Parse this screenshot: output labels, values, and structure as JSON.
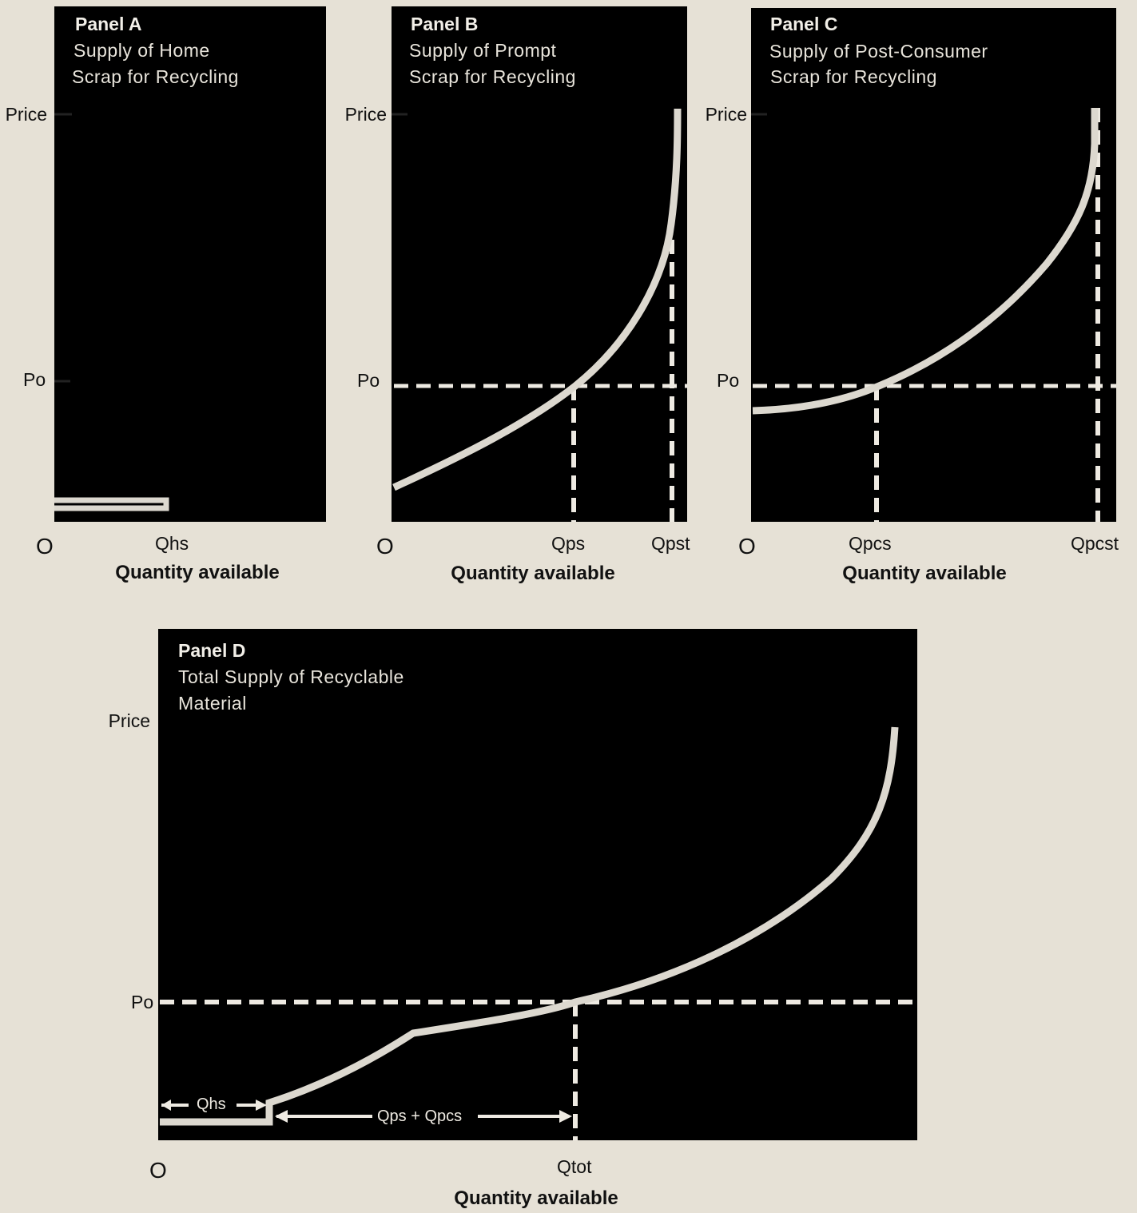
{
  "chart_data": [
    {
      "type": "line",
      "panel": "Panel A",
      "title": "Supply of Home Scrap for Recycling",
      "subtitle_lines": [
        "Supply of Home",
        "Scrap for Recycling"
      ],
      "ylabel": "Price",
      "xlabel": "Quantity available",
      "origin_label": "O",
      "y_ticks": [
        "Price",
        "Po"
      ],
      "x_ticks": [
        "Qhs"
      ],
      "series": [
        {
          "name": "",
          "x": [
            0,
            0.42
          ],
          "y": [
            0.04,
            0.04
          ]
        }
      ]
    },
    {
      "type": "line",
      "panel": "Panel B",
      "title": "Supply of Prompt Scrap for Recycling",
      "subtitle_lines": [
        "Supply of Prompt",
        "Scrap for Recycling"
      ],
      "ylabel": "Price",
      "xlabel": "Quantity available",
      "origin_label": "O",
      "y_ticks": [
        "Price",
        "Po"
      ],
      "x_ticks": [
        "Qps",
        "Qpst"
      ],
      "series": [
        {
          "name": "",
          "x": [
            0,
            0.2,
            0.4,
            0.55,
            0.62,
            0.7,
            0.78,
            0.84,
            0.9,
            0.96,
            0.98,
            0.985
          ],
          "y": [
            0.07,
            0.15,
            0.26,
            0.36,
            0.42,
            0.5,
            0.61,
            0.72,
            0.86,
            1.0,
            1.05,
            1.0
          ]
        }
      ],
      "guides": {
        "p0": 0.27,
        "q_at_p0": 0.61,
        "q_total": 0.96
      }
    },
    {
      "type": "line",
      "panel": "Panel C",
      "title": "Supply of Post-Consumer Scrap for Recycling",
      "subtitle_lines": [
        "Supply of Post-Consumer",
        "Scrap for Recycling"
      ],
      "ylabel": "Price",
      "xlabel": "Quantity available",
      "origin_label": "O",
      "y_ticks": [
        "Price",
        "Po"
      ],
      "x_ticks": [
        "Qpcs",
        "Qpcst"
      ],
      "series": [
        {
          "name": "",
          "x": [
            0,
            0.1,
            0.2,
            0.35,
            0.5,
            0.65,
            0.8,
            0.92,
            0.98,
            0.985
          ],
          "y": [
            0.21,
            0.22,
            0.25,
            0.31,
            0.41,
            0.53,
            0.69,
            0.84,
            0.96,
            1.0
          ]
        }
      ],
      "guides": {
        "p0": 0.26,
        "q_at_p0": 0.36,
        "q_total": 0.99
      }
    },
    {
      "type": "line",
      "panel": "Panel D",
      "title": "Total Supply of Recyclable Material",
      "subtitle_lines": [
        "Total Supply of Recyclable",
        "Material"
      ],
      "ylabel": "Price",
      "xlabel": "Quantity available",
      "origin_label": "O",
      "y_ticks": [
        "Po"
      ],
      "x_ticks": [
        "Qtot"
      ],
      "annotations": [
        "Qhs",
        "Qps + Qpcs"
      ],
      "series": [
        {
          "name": "",
          "x": [
            0,
            0.15,
            0.15,
            0.2,
            0.28,
            0.34,
            0.45,
            0.55,
            0.65,
            0.75,
            0.85,
            0.92,
            0.96,
            0.97
          ],
          "y": [
            0.02,
            0.02,
            0.05,
            0.09,
            0.18,
            0.2,
            0.23,
            0.27,
            0.33,
            0.42,
            0.55,
            0.7,
            0.86,
            0.95
          ]
        }
      ],
      "guides": {
        "p0": 0.26,
        "q_at_p0": 0.55
      }
    }
  ],
  "colors": {
    "background": "#e6e1d6",
    "panel": "#000000",
    "curve": "#dcd8cf",
    "dashed": "#eeeae2",
    "text": "#111111"
  }
}
